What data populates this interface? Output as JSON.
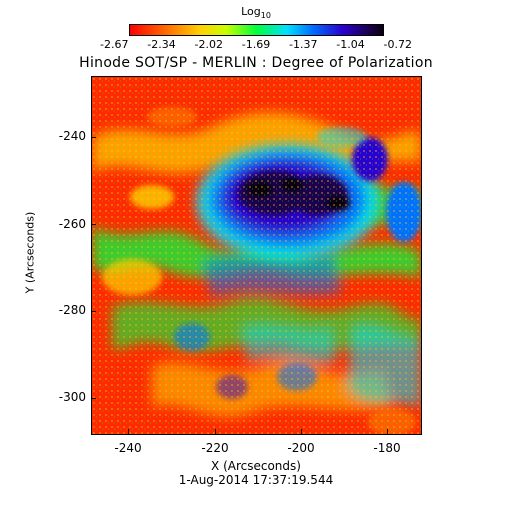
{
  "colorbar": {
    "label": "Log",
    "label_sub": "10",
    "ticks": [
      "-2.67",
      "-2.34",
      "-2.02",
      "-1.69",
      "-1.37",
      "-1.04",
      "-0.72"
    ]
  },
  "title": "Hinode SOT/SP - MERLIN : Degree of Polarization",
  "axes": {
    "ylabel": "Y (Arcseconds)",
    "xlabel": "X (Arcseconds)",
    "yticks": [
      "-240",
      "-260",
      "-280",
      "-300"
    ],
    "xticks": [
      "-240",
      "-220",
      "-200",
      "-180"
    ]
  },
  "timestamp": "1-Aug-2014 17:37:19.544",
  "colors": {
    "low": "#ff0000",
    "mid": "#00ff3c",
    "high": "#1c0050"
  }
}
